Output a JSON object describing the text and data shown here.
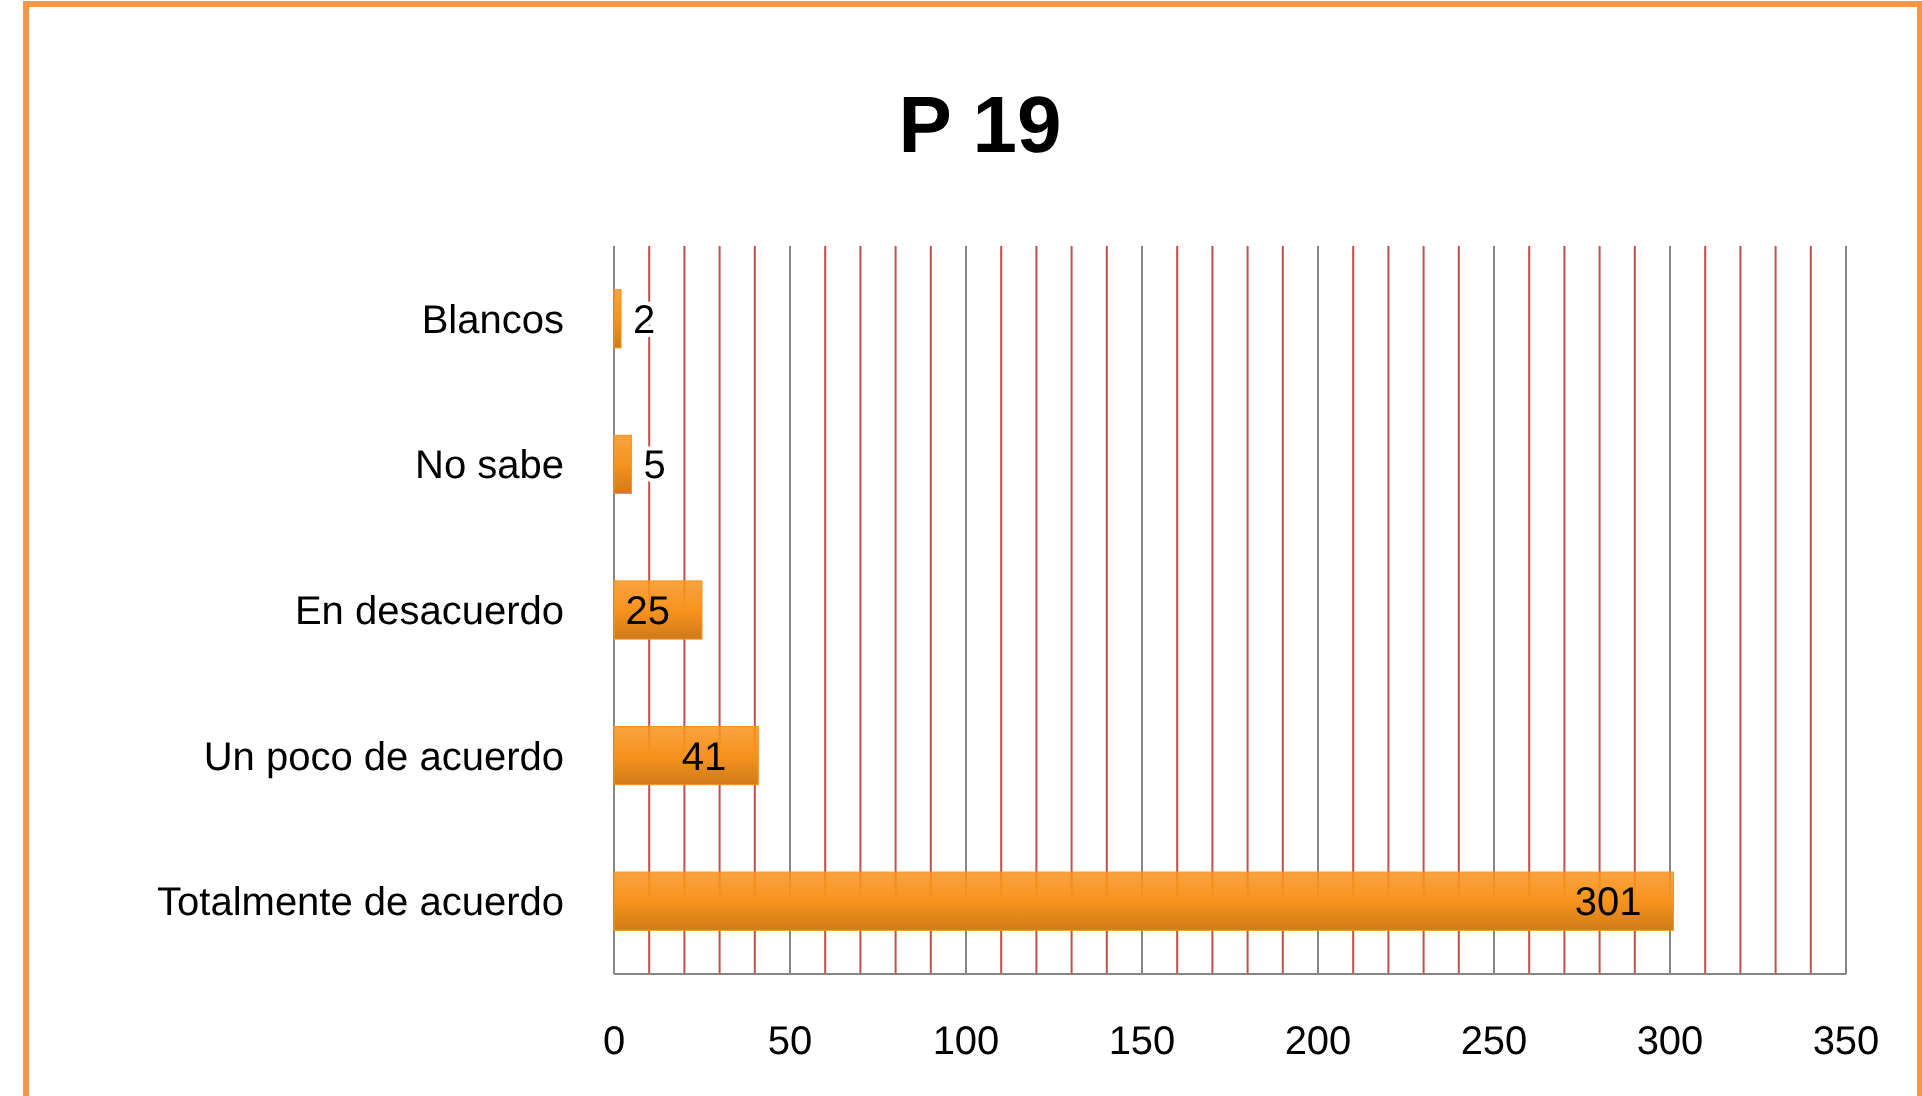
{
  "chart_data": {
    "type": "bar",
    "orientation": "horizontal",
    "title": "P 19",
    "categories": [
      "Blancos",
      "No sabe",
      "En desacuerdo",
      "Un poco de acuerdo",
      "Totalmente de acuerdo"
    ],
    "values": [
      2,
      5,
      25,
      41,
      301
    ],
    "color": "#f7931e",
    "data_labels": true,
    "grid": "x",
    "xlim": [
      0,
      350
    ],
    "xticks": [
      0,
      {
        "value": 10,
        "label": null
      },
      {
        "value": 20,
        "label": null
      },
      {
        "value": 30,
        "label": null
      },
      {
        "value": 40,
        "label": null
      },
      50,
      {
        "value": 60,
        "label": null
      },
      {
        "value": 70,
        "label": null
      },
      {
        "value": 80,
        "label": null
      },
      {
        "value": 90,
        "label": null
      },
      100,
      {
        "value": 110,
        "label": null
      },
      {
        "value": 120,
        "label": null
      },
      {
        "value": 130,
        "label": null
      },
      {
        "value": 140,
        "label": null
      },
      150,
      {
        "value": 160,
        "label": null
      },
      {
        "value": 170,
        "label": null
      },
      {
        "value": 180,
        "label": null
      },
      {
        "value": 190,
        "label": null
      },
      200,
      {
        "value": 210,
        "label": null
      },
      {
        "value": 220,
        "label": null
      },
      {
        "value": 230,
        "label": null
      },
      {
        "value": 240,
        "label": null
      },
      250,
      {
        "value": 260,
        "label": null
      },
      {
        "value": 270,
        "label": null
      },
      {
        "value": 280,
        "label": null
      },
      {
        "value": 290,
        "label": null
      },
      300,
      {
        "value": 310,
        "label": null
      },
      {
        "value": 320,
        "label": null
      },
      {
        "value": 330,
        "label": null
      },
      {
        "value": 340,
        "label": null
      },
      350
    ]
  }
}
